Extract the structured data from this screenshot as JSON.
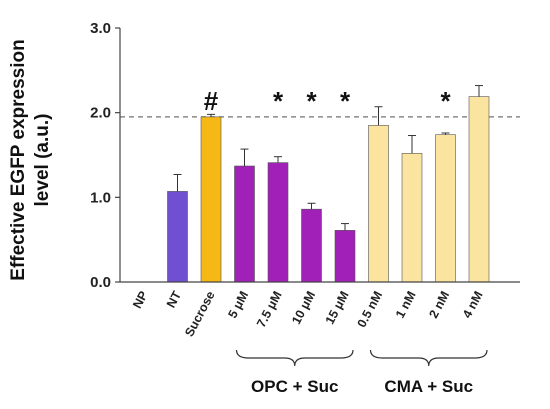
{
  "chart_data": {
    "type": "bar",
    "ylabel_lines": [
      "Effective EGFP expression",
      "level (a.u.)"
    ],
    "ylim": [
      0,
      3.0
    ],
    "yticks": [
      "0.0",
      "1.0",
      "2.0",
      "3.0"
    ],
    "yticks_values": [
      0,
      1,
      2,
      3
    ],
    "reference_line": 1.95,
    "categories": [
      "NP",
      "NT",
      "Sucrose",
      "5 μM",
      "7.5 μM",
      "10 μM",
      "15 μM",
      "0.5 nM",
      "1 nM",
      "2 nM",
      "4 nM"
    ],
    "values": [
      0,
      1.07,
      1.95,
      1.37,
      1.41,
      0.86,
      0.61,
      1.85,
      1.52,
      1.74,
      2.19
    ],
    "errors": [
      0,
      0.2,
      0.03,
      0.2,
      0.07,
      0.07,
      0.08,
      0.22,
      0.21,
      0.02,
      0.13
    ],
    "colors": [
      "#ffffff",
      "#7050d0",
      "#f6b816",
      "#a020b8",
      "#a020b8",
      "#a020b8",
      "#a020b8",
      "#fbe4a0",
      "#fbe4a0",
      "#fbe4a0",
      "#fbe4a0"
    ],
    "annotations": [
      "",
      "",
      "#",
      "",
      "*",
      "*",
      "*",
      "",
      "",
      "*",
      ""
    ],
    "groups": [
      {
        "label": "OPC + Suc",
        "from": 3,
        "to": 6
      },
      {
        "label": "CMA + Suc",
        "from": 7,
        "to": 10
      }
    ]
  }
}
